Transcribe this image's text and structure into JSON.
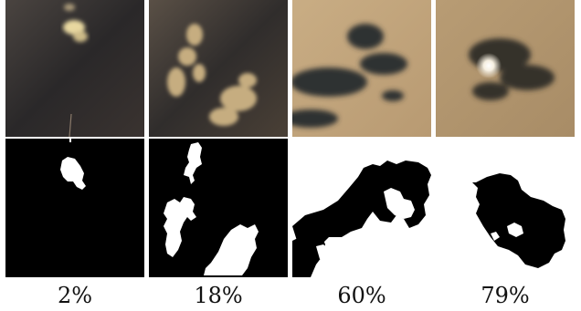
{
  "figure": {
    "panels": [
      {
        "coverage": "2%"
      },
      {
        "coverage": "18%"
      },
      {
        "coverage": "60%"
      },
      {
        "coverage": "79%"
      }
    ],
    "colors": {
      "mask_cloud": "#ffffff",
      "mask_sky": "#000000",
      "photo_dark": "#2c2a2b",
      "photo_warm": "#c8a77e"
    }
  }
}
